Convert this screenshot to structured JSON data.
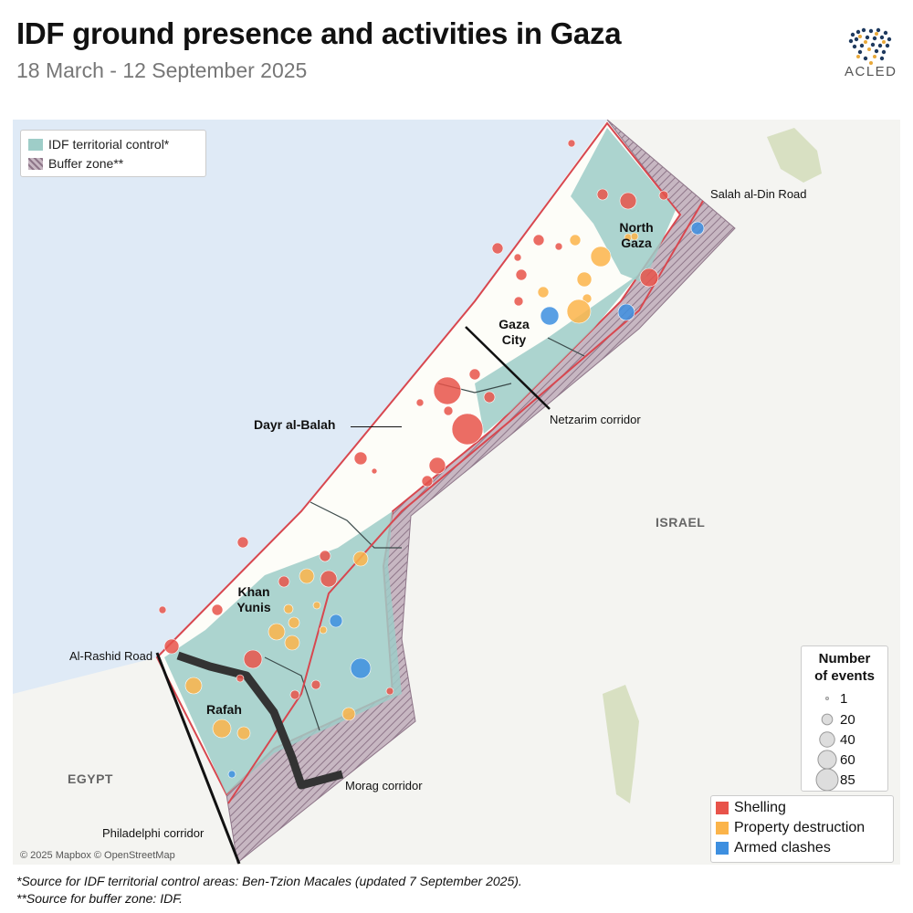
{
  "header": {
    "title": "IDF ground presence and activities in Gaza",
    "subtitle": "18 March - 12 September 2025"
  },
  "logo": {
    "text": "ACLED"
  },
  "map_legend": {
    "items": [
      {
        "label": "IDF territorial control*",
        "color": "#9ecdc8"
      },
      {
        "label": "Buffer zone**",
        "color": "#b0a0ab"
      }
    ]
  },
  "size_legend": {
    "title_line1": "Number",
    "title_line2": "of events",
    "sizes": [
      {
        "label": "1",
        "value": 1
      },
      {
        "label": "20",
        "value": 20
      },
      {
        "label": "40",
        "value": 40
      },
      {
        "label": "60",
        "value": 60
      },
      {
        "label": "85",
        "value": 85
      }
    ]
  },
  "event_types": [
    {
      "label": "Shelling",
      "color": "#e8534a"
    },
    {
      "label": "Property destruction",
      "color": "#fbb44a"
    },
    {
      "label": "Armed clashes",
      "color": "#3d8fe0"
    }
  ],
  "labels": {
    "salah": "Salah al-Din Road",
    "netzarim": "Netzarim corridor",
    "rashid": "Al-Rashid Road",
    "morag": "Morag corridor",
    "philadelphi": "Philadelphi corridor",
    "dayr": "Dayr al-Balah",
    "israel": "ISRAEL",
    "egypt": "EGYPT",
    "north_gaza_1": "North",
    "north_gaza_2": "Gaza",
    "gaza_city_1": "Gaza",
    "gaza_city_2": "City",
    "khan_1": "Khan",
    "khan_2": "Yunis",
    "rafah": "Rafah"
  },
  "attribution": "© 2025 Mapbox © OpenStreetMap",
  "footnotes": {
    "line1": "*Source for IDF territorial control areas: Ben-Tzion Macales (updated 7 September 2025).",
    "line2": "**Source for buffer zone: IDF."
  }
}
